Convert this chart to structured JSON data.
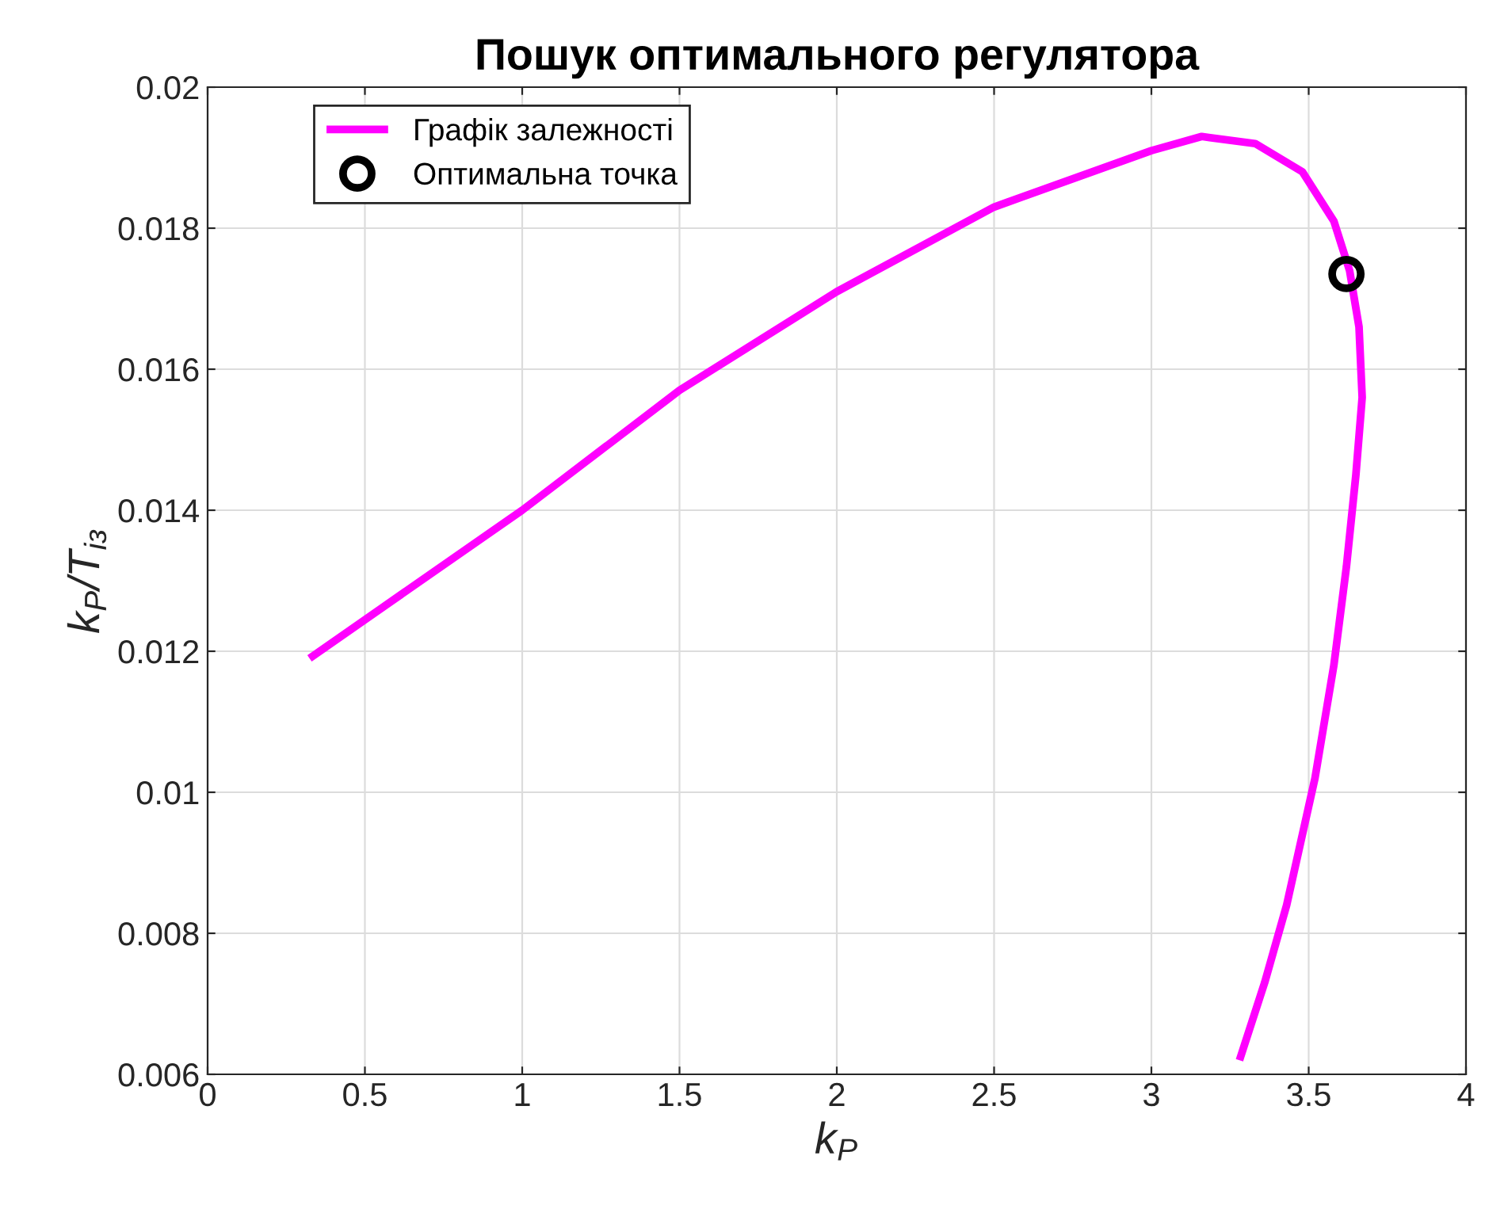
{
  "chart_data": {
    "type": "line",
    "title": "Пошук оптимального регулятора",
    "xlabel": "k$_{P}$",
    "ylabel": "k$_{P}$/T$_{із}$",
    "xlim": [
      0,
      4
    ],
    "xticks": [
      0,
      0.5,
      1,
      1.5,
      2,
      2.5,
      3,
      3.5,
      4
    ],
    "ylim": [
      0.006,
      0.02
    ],
    "yticks": [
      0.006,
      0.008,
      0.01,
      0.012,
      0.014,
      0.016,
      0.018,
      0.02
    ],
    "grid": true,
    "legend": "top left",
    "series": [
      {
        "name": "Графік залежності",
        "color": "#ff00ff",
        "marker": "none",
        "line_style": "solid",
        "x": [
          0.324,
          1.0,
          1.5,
          2.0,
          2.5,
          3.0,
          3.16,
          3.33,
          3.48,
          3.58,
          3.63,
          3.66,
          3.67,
          3.65,
          3.62,
          3.58,
          3.52,
          3.43,
          3.36,
          3.28
        ],
        "values": [
          0.0119,
          0.014,
          0.0157,
          0.0171,
          0.0183,
          0.0191,
          0.0193,
          0.0192,
          0.0188,
          0.0181,
          0.0174,
          0.0166,
          0.0156,
          0.0145,
          0.0132,
          0.0118,
          0.0102,
          0.0084,
          0.0073,
          0.0062
        ]
      },
      {
        "name": "Оптимальна точка",
        "type": "scatter",
        "color": "#000000",
        "marker": "circle",
        "x": [
          3.62
        ],
        "values": [
          0.01735
        ]
      }
    ]
  }
}
